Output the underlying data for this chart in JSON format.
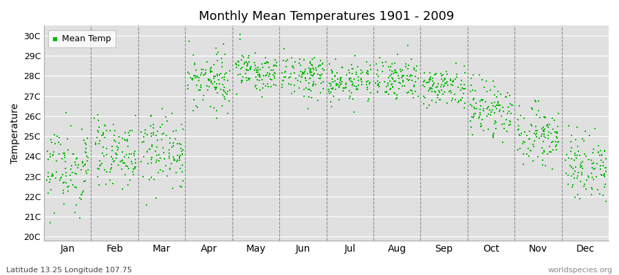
{
  "title": "Monthly Mean Temperatures 1901 - 2009",
  "ylabel": "Temperature",
  "xlabel_labels": [
    "Jan",
    "Feb",
    "Mar",
    "Apr",
    "May",
    "Jun",
    "Jul",
    "Aug",
    "Sep",
    "Oct",
    "Nov",
    "Dec"
  ],
  "subtitle": "Latitude 13.25 Longitude 107.75",
  "watermark": "worldspecies.org",
  "legend_label": "Mean Temp",
  "dot_color": "#00BB00",
  "dot_size": 2.5,
  "background_color": "#FFFFFF",
  "plot_bg_color": "#E0E0E0",
  "ytick_labels": [
    "20C",
    "21C",
    "22C",
    "23C",
    "24C",
    "25C",
    "26C",
    "27C",
    "28C",
    "29C",
    "30C"
  ],
  "ytick_values": [
    20,
    21,
    22,
    23,
    24,
    25,
    26,
    27,
    28,
    29,
    30
  ],
  "ylim": [
    19.8,
    30.5
  ],
  "n_years": 109,
  "monthly_means": [
    23.3,
    24.0,
    24.2,
    27.7,
    28.2,
    28.0,
    27.7,
    27.9,
    27.4,
    26.4,
    25.0,
    23.6
  ],
  "monthly_stds": [
    1.0,
    0.85,
    0.95,
    0.65,
    0.5,
    0.5,
    0.48,
    0.48,
    0.5,
    0.65,
    0.7,
    0.8
  ]
}
